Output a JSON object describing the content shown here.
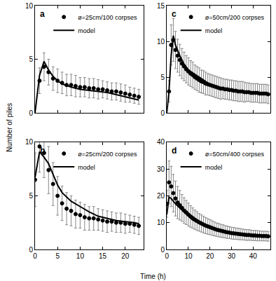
{
  "xlabel": "Time (h)",
  "ylabel": "Number of piles",
  "chart_data": [
    {
      "type": "scatter",
      "label": "a",
      "legend": "top right",
      "tick_labels": "y",
      "xlim": [
        0,
        24
      ],
      "xticks": [
        0,
        5,
        10,
        15,
        20
      ],
      "ylim": [
        0,
        10
      ],
      "yticks": [
        0,
        5,
        10
      ],
      "series": [
        {
          "name": "ø=25cm/100 corpses",
          "type": "scatter",
          "marker": "open-circle",
          "color": "#000000",
          "x": [
            1,
            2,
            3,
            4,
            5,
            6,
            7,
            8,
            9,
            10,
            11,
            12,
            13,
            14,
            15,
            16,
            17,
            18,
            19,
            20,
            21,
            22,
            23
          ],
          "values": [
            3.0,
            4.3,
            3.8,
            3.2,
            3.0,
            2.8,
            2.6,
            2.6,
            2.5,
            2.4,
            2.4,
            2.3,
            2.3,
            2.2,
            2.2,
            2.1,
            2.0,
            2.0,
            1.9,
            1.8,
            1.7,
            1.6,
            1.5
          ],
          "error": [
            1.2,
            1.3,
            1.2,
            1.1,
            1.1,
            1.0,
            1.0,
            1.0,
            1.0,
            0.9,
            0.9,
            0.9,
            0.9,
            0.9,
            0.8,
            0.8,
            0.8,
            0.8,
            0.8,
            0.8,
            0.7,
            0.7,
            0.7
          ]
        },
        {
          "name": "model",
          "type": "line",
          "line_style": "solid",
          "color": "#000000",
          "x": [
            0,
            1,
            2,
            3,
            4,
            5,
            6,
            8,
            10,
            12,
            14,
            16,
            18,
            20,
            22,
            23
          ],
          "values": [
            0,
            3.5,
            4.8,
            4.0,
            3.4,
            3.0,
            2.7,
            2.4,
            2.2,
            2.1,
            2.0,
            1.9,
            1.7,
            1.5,
            1.3,
            1.2
          ]
        }
      ]
    },
    {
      "type": "scatter",
      "label": "c",
      "legend": "top right",
      "tick_labels": "y",
      "xlim": [
        0,
        48
      ],
      "xticks": [
        0,
        10,
        20,
        30,
        40
      ],
      "ylim": [
        0,
        15
      ],
      "yticks": [
        0,
        5,
        10,
        15
      ],
      "series": [
        {
          "name": "ø=50cm/200 corpses",
          "type": "scatter",
          "marker": "open-circle",
          "color": "#000000",
          "x": [
            1,
            2,
            3,
            4,
            5,
            6,
            7,
            8,
            9,
            10,
            11,
            12,
            13,
            14,
            15,
            16,
            17,
            18,
            19,
            20,
            21,
            22,
            23,
            24,
            25,
            26,
            27,
            28,
            29,
            30,
            31,
            32,
            33,
            34,
            35,
            36,
            37,
            38,
            39,
            40,
            41,
            42,
            43,
            44,
            45,
            46,
            47
          ],
          "values": [
            3.0,
            9.5,
            10.2,
            8.8,
            8.0,
            7.4,
            6.9,
            6.5,
            6.1,
            5.8,
            5.5,
            5.3,
            5.0,
            4.8,
            4.6,
            4.4,
            4.3,
            4.1,
            4.0,
            3.9,
            3.8,
            3.7,
            3.6,
            3.5,
            3.4,
            3.4,
            3.3,
            3.3,
            3.2,
            3.2,
            3.1,
            3.1,
            3.0,
            3.0,
            3.0,
            2.9,
            2.9,
            2.9,
            2.8,
            2.8,
            2.8,
            2.8,
            2.7,
            2.7,
            2.7,
            2.7,
            2.6
          ],
          "error": [
            1.5,
            2.8,
            3.0,
            2.6,
            2.3,
            2.2,
            2.1,
            2.0,
            1.9,
            1.9,
            1.8,
            1.8,
            1.7,
            1.7,
            1.7,
            1.6,
            1.6,
            1.6,
            1.5,
            1.5,
            1.5,
            1.5,
            1.5,
            1.5,
            1.5,
            1.4,
            1.4,
            1.4,
            1.4,
            1.4,
            1.4,
            1.4,
            1.4,
            1.4,
            1.4,
            1.4,
            1.3,
            1.3,
            1.3,
            1.3,
            1.3,
            1.3,
            1.3,
            1.3,
            1.3,
            1.3,
            1.3
          ]
        },
        {
          "name": "model",
          "type": "line",
          "line_style": "solid",
          "color": "#000000",
          "x": [
            0,
            1,
            2,
            3,
            4,
            6,
            8,
            10,
            15,
            20,
            25,
            30,
            35,
            40,
            45,
            47
          ],
          "values": [
            0,
            3.0,
            8.0,
            10.8,
            9.5,
            8.0,
            6.8,
            6.0,
            5.0,
            4.0,
            3.5,
            3.1,
            3.0,
            2.9,
            2.8,
            2.7
          ]
        }
      ]
    },
    {
      "type": "scatter",
      "label": "b",
      "legend": "top right",
      "xlim": [
        0,
        24
      ],
      "xticks": [
        0,
        5,
        10,
        15,
        20
      ],
      "ylim": [
        0,
        10
      ],
      "yticks": [
        0,
        5,
        10
      ],
      "series": [
        {
          "name": "ø=25cm/200 corpses",
          "type": "scatter",
          "marker": "open-circle",
          "color": "#000000",
          "x": [
            0,
            1,
            2,
            3,
            4,
            5,
            6,
            7,
            8,
            9,
            10,
            11,
            12,
            13,
            14,
            15,
            16,
            17,
            18,
            19,
            20,
            21,
            22,
            23
          ],
          "values": [
            6.5,
            9.6,
            9.0,
            7.4,
            6.1,
            5.0,
            4.3,
            3.8,
            3.6,
            3.3,
            3.2,
            3.0,
            2.9,
            2.9,
            2.8,
            2.7,
            2.6,
            2.6,
            2.5,
            2.5,
            2.4,
            2.4,
            2.3,
            2.2
          ],
          "error": [
            2.5,
            2.4,
            2.3,
            2.2,
            2.0,
            1.8,
            1.6,
            1.5,
            1.4,
            1.3,
            1.2,
            1.2,
            1.1,
            1.1,
            1.0,
            1.0,
            1.0,
            0.9,
            0.9,
            0.9,
            0.9,
            0.8,
            0.8,
            0.8
          ]
        },
        {
          "name": "model",
          "type": "line",
          "line_style": "solid",
          "color": "#000000",
          "x": [
            0,
            1,
            2,
            3,
            4,
            5,
            6,
            8,
            10,
            12,
            14,
            16,
            18,
            20,
            22,
            23
          ],
          "values": [
            6.7,
            9.1,
            8.6,
            8.0,
            7.0,
            6.0,
            5.3,
            4.5,
            4.0,
            3.5,
            3.1,
            2.9,
            2.7,
            2.6,
            2.5,
            2.4
          ]
        }
      ]
    },
    {
      "type": "scatter",
      "label": "d",
      "legend": "top right",
      "xlim": [
        0,
        48
      ],
      "xticks": [
        0,
        10,
        20,
        30,
        40
      ],
      "ylim": [
        0,
        40
      ],
      "yticks": [
        0,
        10,
        20,
        30,
        40
      ],
      "series": [
        {
          "name": "ø=50cm/400 corpses",
          "type": "scatter",
          "marker": "open-circle",
          "color": "#000000",
          "x": [
            0,
            1,
            2,
            3,
            4,
            5,
            6,
            7,
            8,
            9,
            10,
            11,
            12,
            13,
            14,
            15,
            16,
            17,
            18,
            19,
            20,
            21,
            22,
            23,
            24,
            25,
            26,
            27,
            28,
            29,
            30,
            31,
            32,
            33,
            34,
            35,
            36,
            37,
            38,
            39,
            40,
            41,
            42,
            43,
            44,
            45,
            46,
            47
          ],
          "values": [
            17,
            25,
            23.5,
            21,
            19,
            17.5,
            16.5,
            15.5,
            14.5,
            13.8,
            13,
            12.3,
            11.7,
            11.1,
            10.6,
            10.1,
            9.7,
            9.3,
            8.9,
            8.6,
            8.3,
            8.0,
            7.7,
            7.4,
            7.2,
            7.0,
            6.8,
            6.6,
            6.4,
            6.3,
            6.1,
            6.0,
            5.9,
            5.8,
            5.7,
            5.6,
            5.5,
            5.4,
            5.4,
            5.3,
            5.2,
            5.2,
            5.1,
            5.1,
            5.0,
            5.0,
            5.0,
            4.9
          ],
          "error": [
            5,
            8,
            7.5,
            7,
            6.5,
            6,
            5.5,
            5,
            4.8,
            4.5,
            4.3,
            4.0,
            3.8,
            3.6,
            3.5,
            3.3,
            3.2,
            3.1,
            3.0,
            2.9,
            2.8,
            2.7,
            2.6,
            2.5,
            2.5,
            2.4,
            2.4,
            2.3,
            2.3,
            2.2,
            2.2,
            2.2,
            2.1,
            2.1,
            2.1,
            2.0,
            2.0,
            2.0,
            2.0,
            1.9,
            1.9,
            1.9,
            1.9,
            1.8,
            1.8,
            1.8,
            1.8,
            1.8
          ]
        },
        {
          "name": "model",
          "type": "line",
          "line_style": "solid",
          "color": "#000000",
          "x": [
            0,
            1,
            2,
            4,
            6,
            8,
            12,
            17,
            22,
            28,
            35,
            42,
            47
          ],
          "values": [
            13,
            19.5,
            19.0,
            17,
            15.5,
            14,
            11,
            9,
            7.5,
            6.5,
            5.5,
            5.0,
            4.8
          ]
        }
      ]
    }
  ]
}
